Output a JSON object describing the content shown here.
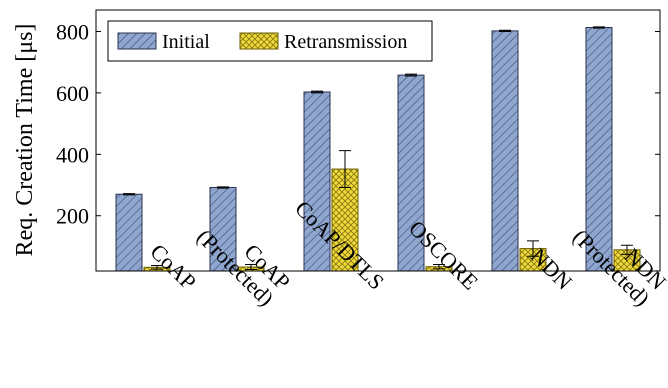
{
  "chart_data": {
    "type": "bar",
    "categories": [
      "CoAP",
      "CoAP\n(Protected)",
      "CoAP/DTLS",
      "OSCORE",
      "NDN",
      "NDN\n(Protected)"
    ],
    "series": [
      {
        "name": "Initial",
        "values": [
          270,
          292,
          603,
          658,
          802,
          813
        ],
        "errors": [
          2,
          2,
          3,
          3,
          2,
          2
        ]
      },
      {
        "name": "Retransmission",
        "values": [
          32,
          33,
          352,
          34,
          93,
          89
        ],
        "errors": [
          6,
          8,
          60,
          7,
          25,
          15
        ]
      }
    ],
    "xlabel": "",
    "ylabel": "Req. Creation Time [μs]",
    "ylim": [
      20,
      870
    ],
    "yticks": [
      200,
      400,
      600,
      800
    ],
    "grid": false,
    "legend_position": "top-left",
    "colors": {
      "Initial": "#8fa6cf",
      "Retransmission": "#f0da3c"
    }
  }
}
